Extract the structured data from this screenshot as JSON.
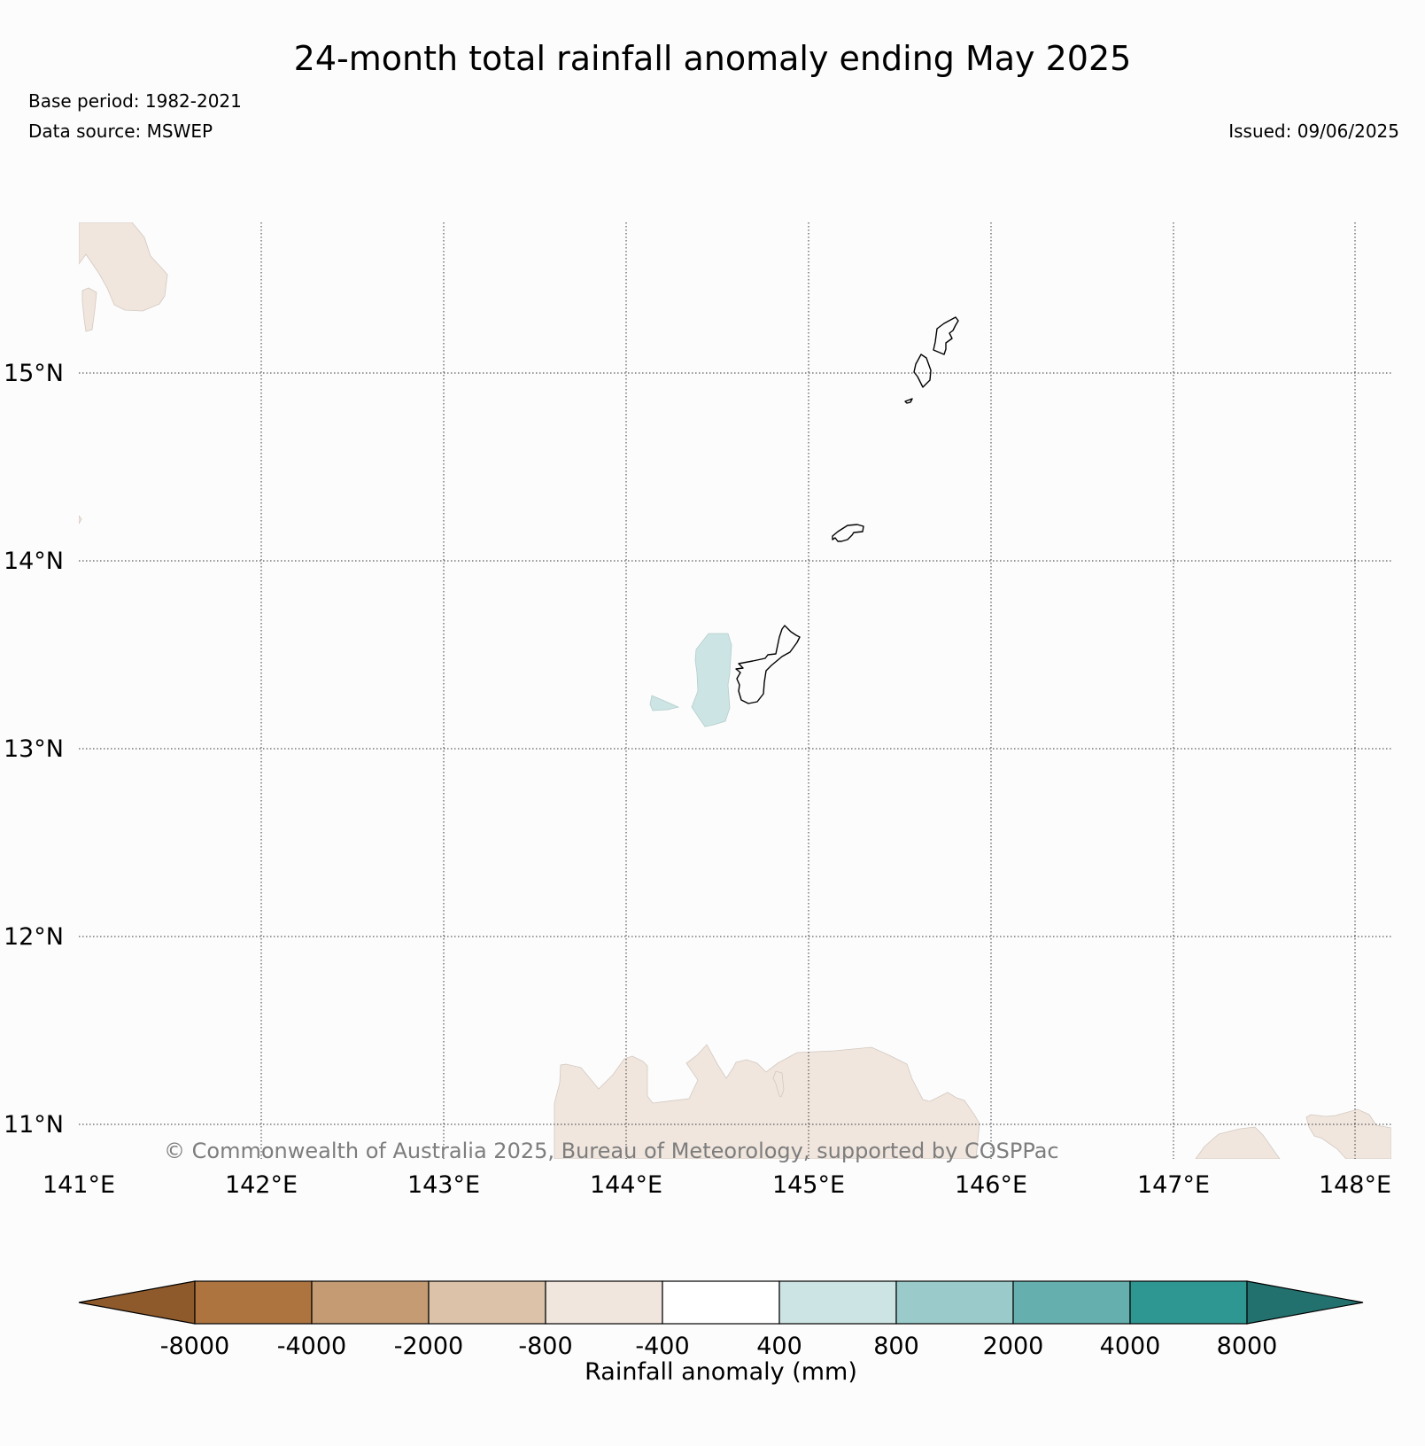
{
  "title": "24-month total rainfall anomaly ending May 2025",
  "base_period": "Base period: 1982-2021",
  "data_source": "Data source: MSWEP",
  "issued": "Issued: 09/06/2025",
  "copyright": "© Commonwealth of Australia 2025, Bureau of Meteorology, supported by COSPPac",
  "map": {
    "lon_labels": [
      "141°E",
      "142°E",
      "143°E",
      "144°E",
      "145°E",
      "146°E",
      "147°E",
      "148°E"
    ],
    "lat_labels": [
      "15°N",
      "14°N",
      "13°N",
      "12°N",
      "11°N"
    ]
  },
  "colorbar": {
    "title": "Rainfall anomaly (mm)",
    "ticks": [
      "-8000",
      "-4000",
      "-2000",
      "-800",
      "-400",
      "400",
      "800",
      "2000",
      "4000",
      "8000"
    ],
    "colors": [
      "#8e5a2c",
      "#ad743f",
      "#c49b73",
      "#dbc2a9",
      "#f0e6de",
      "#ffffff",
      "#cce4e3",
      "#9acbca",
      "#65b0ae",
      "#2f9792",
      "#22716e"
    ]
  }
}
